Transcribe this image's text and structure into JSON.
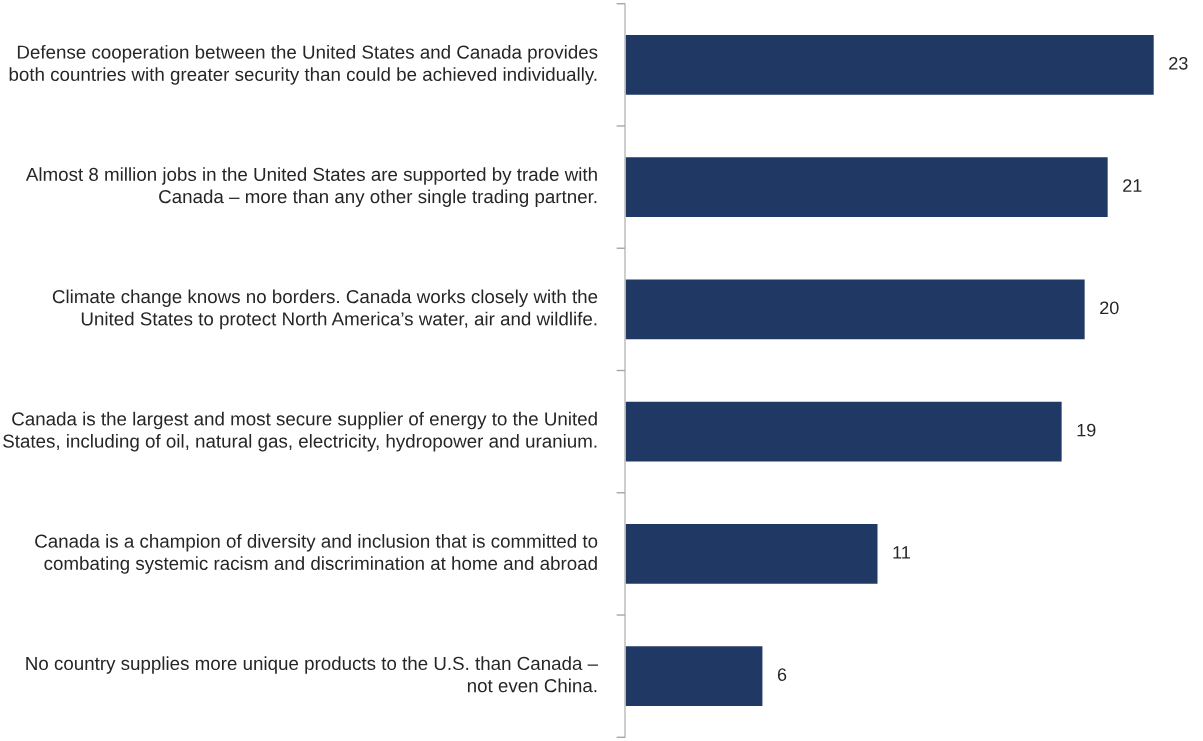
{
  "chart_data": {
    "type": "bar",
    "orientation": "horizontal",
    "data_labels": true,
    "categories": [
      "Defense cooperation between the United States and Canada provides both countries with greater security than could be achieved individually.",
      "Almost 8 million jobs in the United States are supported by trade with Canada – more than any other single trading partner.",
      "Climate change knows no borders. Canada works closely with the United States to protect North America’s water, air and wildlife.",
      "Canada is the largest and most secure supplier of energy to the United States, including of oil, natural gas, electricity, hydropower and uranium.",
      "Canada is a champion of diversity and inclusion that is committed to combating systemic racism and discrimination at home and abroad",
      "No country supplies more unique products to the U.S. than Canada – not even China."
    ],
    "values": [
      23,
      21,
      20,
      19,
      11,
      6
    ],
    "color": "#203864",
    "grid": false,
    "legend": false
  }
}
